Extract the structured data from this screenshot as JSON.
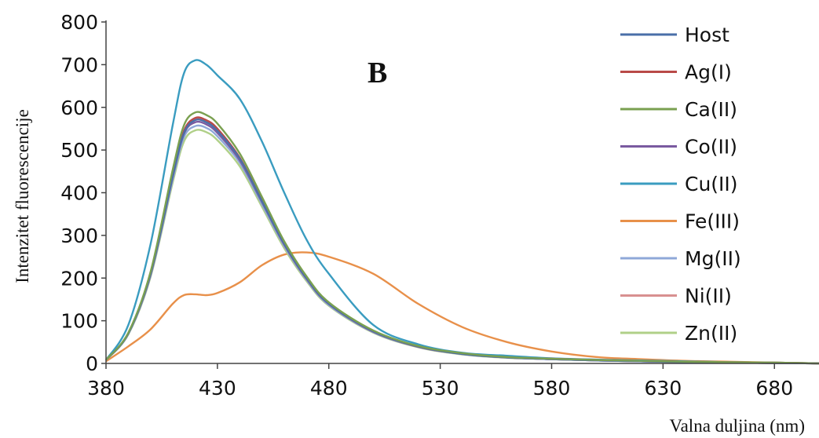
{
  "chart_data": {
    "type": "line",
    "panel_label": "B",
    "xlabel": "Valna duljina (nm)",
    "ylabel": "Intenzitet fluorescencije",
    "xlim": [
      380,
      700
    ],
    "ylim": [
      0,
      800
    ],
    "xticks": [
      380,
      430,
      480,
      530,
      580,
      630,
      680
    ],
    "yticks": [
      0,
      100,
      200,
      300,
      400,
      500,
      600,
      700,
      800
    ],
    "grid": false,
    "legend_position": "top-right",
    "series": [
      {
        "name": "Host",
        "color": "#4a6fa8",
        "x": [
          380,
          390,
          400,
          410,
          415,
          420,
          425,
          430,
          440,
          450,
          460,
          470,
          480,
          500,
          520,
          540,
          560,
          580,
          600,
          620,
          640,
          660,
          680,
          700
        ],
        "y": [
          8,
          70,
          210,
          440,
          540,
          570,
          565,
          545,
          480,
          380,
          280,
          200,
          140,
          75,
          40,
          22,
          14,
          10,
          7,
          5,
          3,
          2,
          1,
          0
        ]
      },
      {
        "name": "Ag(I)",
        "color": "#b94a48",
        "x": [
          380,
          390,
          400,
          410,
          415,
          420,
          425,
          430,
          440,
          450,
          460,
          470,
          480,
          500,
          520,
          540,
          560,
          580,
          600,
          620,
          640,
          660,
          680,
          700
        ],
        "y": [
          8,
          71,
          212,
          445,
          545,
          575,
          570,
          550,
          482,
          382,
          282,
          201,
          141,
          76,
          40,
          23,
          14,
          11,
          8,
          6,
          4,
          3,
          2,
          0
        ]
      },
      {
        "name": "Ca(II)",
        "color": "#7aa050",
        "x": [
          380,
          390,
          400,
          410,
          415,
          420,
          425,
          430,
          440,
          450,
          460,
          470,
          480,
          500,
          520,
          540,
          560,
          580,
          600,
          620,
          640,
          660,
          680,
          700
        ],
        "y": [
          8,
          72,
          215,
          455,
          558,
          588,
          582,
          562,
          492,
          390,
          286,
          204,
          143,
          77,
          41,
          24,
          15,
          11,
          8,
          6,
          4,
          3,
          2,
          0
        ]
      },
      {
        "name": "Co(II)",
        "color": "#7a5aa0",
        "x": [
          380,
          390,
          400,
          410,
          415,
          420,
          425,
          430,
          440,
          450,
          460,
          470,
          480,
          500,
          520,
          540,
          560,
          580,
          600,
          620,
          640,
          660,
          680,
          700
        ],
        "y": [
          8,
          70,
          208,
          438,
          538,
          565,
          560,
          540,
          476,
          378,
          278,
          198,
          139,
          74,
          39,
          22,
          14,
          10,
          7,
          5,
          3,
          2,
          1,
          0
        ]
      },
      {
        "name": "Cu(II)",
        "color": "#3a9cc0",
        "x": [
          380,
          390,
          400,
          410,
          415,
          420,
          425,
          430,
          440,
          450,
          460,
          470,
          480,
          500,
          520,
          540,
          560,
          580,
          600,
          620,
          640,
          660,
          680,
          700
        ],
        "y": [
          8,
          90,
          280,
          560,
          680,
          710,
          700,
          675,
          620,
          520,
          400,
          290,
          210,
          90,
          45,
          25,
          18,
          12,
          9,
          7,
          5,
          3,
          2,
          0
        ]
      },
      {
        "name": "Fe(III)",
        "color": "#e8904a",
        "x": [
          380,
          390,
          400,
          410,
          415,
          420,
          425,
          430,
          440,
          450,
          460,
          470,
          480,
          500,
          520,
          540,
          560,
          580,
          600,
          620,
          640,
          660,
          680,
          700
        ],
        "y": [
          5,
          40,
          80,
          140,
          160,
          162,
          160,
          165,
          190,
          230,
          255,
          260,
          250,
          210,
          140,
          85,
          50,
          28,
          15,
          10,
          6,
          4,
          2,
          0
        ]
      },
      {
        "name": "Mg(II)",
        "color": "#8fa8d8",
        "x": [
          380,
          390,
          400,
          410,
          415,
          420,
          425,
          430,
          440,
          450,
          460,
          470,
          480,
          500,
          520,
          540,
          560,
          580,
          600,
          620,
          640,
          660,
          680,
          700
        ],
        "y": [
          8,
          69,
          206,
          432,
          530,
          556,
          552,
          532,
          470,
          373,
          275,
          196,
          137,
          73,
          39,
          22,
          14,
          10,
          7,
          5,
          3,
          2,
          1,
          0
        ]
      },
      {
        "name": "Ni(II)",
        "color": "#d89090",
        "x": [
          380,
          390,
          400,
          410,
          415,
          420,
          425,
          430,
          440,
          450,
          460,
          470,
          480,
          500,
          520,
          540,
          560,
          580,
          600,
          620,
          640,
          660,
          680,
          700
        ],
        "y": [
          8,
          70,
          210,
          442,
          542,
          572,
          567,
          547,
          480,
          380,
          280,
          200,
          140,
          75,
          40,
          22,
          14,
          10,
          7,
          5,
          3,
          2,
          1,
          0
        ]
      },
      {
        "name": "Zn(II)",
        "color": "#b0d088",
        "x": [
          380,
          390,
          400,
          410,
          415,
          420,
          425,
          430,
          440,
          450,
          460,
          470,
          480,
          500,
          520,
          540,
          560,
          580,
          600,
          620,
          640,
          660,
          680,
          700
        ],
        "y": [
          8,
          68,
          203,
          425,
          520,
          546,
          542,
          523,
          462,
          367,
          270,
          193,
          135,
          72,
          38,
          21,
          13,
          10,
          7,
          5,
          3,
          2,
          1,
          0
        ]
      }
    ]
  }
}
